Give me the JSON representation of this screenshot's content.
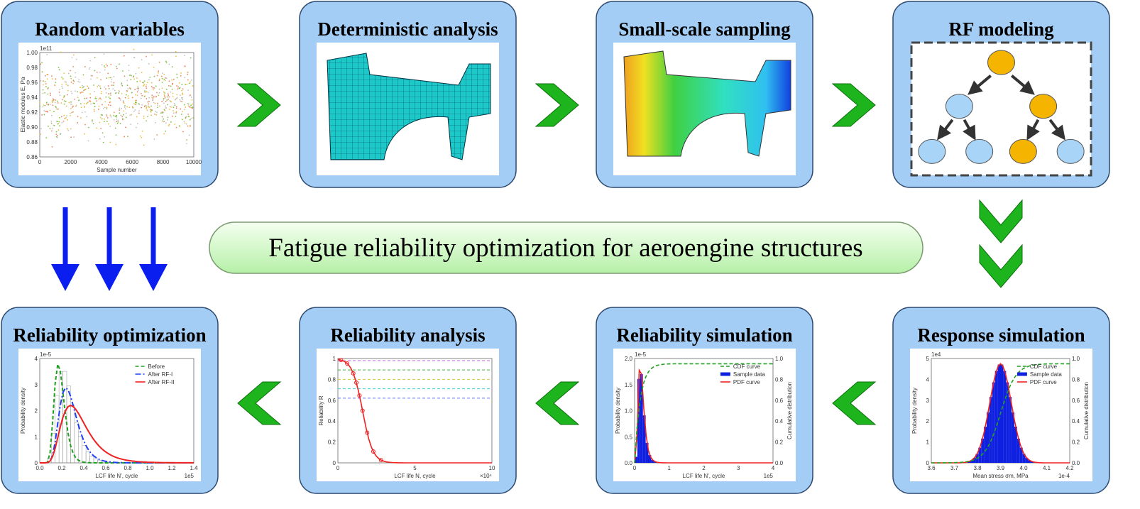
{
  "title": "Fatigue reliability optimization for aeroengine structures",
  "panels": [
    {
      "title": "Random variables",
      "plot": {
        "scale": "1e11",
        "yticks": [
          "1.00",
          "0.98",
          "0.96",
          "0.94",
          "0.92",
          "0.90",
          "0.88",
          "0.86"
        ],
        "xticks": [
          "0",
          "2000",
          "4000",
          "6000",
          "8000",
          "10000"
        ],
        "x_label": "Sample number",
        "y_label": "Elastic modulus E, Pa"
      }
    },
    {
      "title": "Deterministic analysis"
    },
    {
      "title": "Small-scale sampling"
    },
    {
      "title": "RF modeling"
    },
    {
      "title": "Response simulation",
      "plot": {
        "scale": "1e4",
        "x_scale": "1e-4",
        "yticks": [
          "5",
          "4",
          "3",
          "2",
          "1",
          "0"
        ],
        "y2ticks": [
          "1.0",
          "0.8",
          "0.6",
          "0.4",
          "0.2",
          "0.0"
        ],
        "xticks": [
          "3.6",
          "3.7",
          "3.8",
          "3.9",
          "4.0",
          "4.1",
          "4.2"
        ],
        "x_label": "Mean stress σm, MPa",
        "y_label": "Probability density",
        "y2_label": "Cumulative distribution",
        "legend": [
          "CDF curve",
          "Sample data",
          "PDF curve"
        ]
      }
    },
    {
      "title": "Reliability simulation",
      "plot": {
        "scale": "1e-5",
        "x_scale": "1e5",
        "yticks": [
          "2.0",
          "1.5",
          "1.0",
          "0.5",
          "0.0"
        ],
        "y2ticks": [
          "1.0",
          "0.8",
          "0.6",
          "0.4",
          "0.2",
          "0.0"
        ],
        "xticks": [
          "0",
          "1",
          "2",
          "3",
          "4"
        ],
        "x_label": "LCF life N', cycle",
        "y_label": "Probability density",
        "y2_label": "Cumulative distribution",
        "legend": [
          "CDF curve",
          "Sample data",
          "PDF curve"
        ]
      }
    },
    {
      "title": "Reliability analysis",
      "plot": {
        "x_scale": "×10⁴",
        "yticks": [
          "1",
          "0.8",
          "0.6",
          "0.4",
          "0.2",
          "0"
        ],
        "xticks": [
          "0",
          "5",
          "10"
        ],
        "x_label": "LCF life N, cycle",
        "y_label": "Reliability R"
      }
    },
    {
      "title": "Reliability optimization",
      "plot": {
        "scale": "1e-5",
        "x_scale": "1e5",
        "yticks": [
          "4",
          "3",
          "2",
          "1",
          "0"
        ],
        "xticks": [
          "0.0",
          "0.2",
          "0.4",
          "0.6",
          "0.8",
          "1.0",
          "1.2",
          "1.4"
        ],
        "x_label": "LCF life N', cycle",
        "y_label": "Probability density",
        "legend": [
          "Before",
          "After RF-I",
          "After RF-II"
        ]
      }
    }
  ]
}
